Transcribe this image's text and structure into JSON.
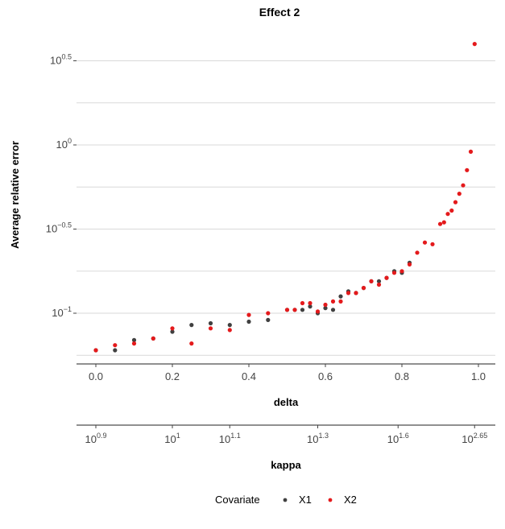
{
  "chart_data": {
    "type": "scatter",
    "title": "Effect 2",
    "ylabel": "Average relative error",
    "y_scale": "log10",
    "xlabel": "delta",
    "xlim": [
      0,
      1
    ],
    "ylim": [
      -1.39,
      0.62
    ],
    "x_ticks": [
      "0.0",
      "0.2",
      "0.4",
      "0.6",
      "0.8",
      "1.0"
    ],
    "y_ticks": [
      {
        "base": "10",
        "exp": "0.5"
      },
      {
        "base": "10",
        "exp": "0"
      },
      {
        "base": "10",
        "exp": "−0.5"
      },
      {
        "base": "10",
        "exp": "−1"
      }
    ],
    "secondary_axis": {
      "label": "kappa",
      "ticks": [
        {
          "base": "10",
          "exp": "0.9"
        },
        {
          "base": "10",
          "exp": "1"
        },
        {
          "base": "10",
          "exp": "1.1"
        },
        {
          "base": "10",
          "exp": "1.3"
        },
        {
          "base": "10",
          "exp": "1.6"
        },
        {
          "base": "10",
          "exp": "2.65"
        }
      ]
    },
    "legend": {
      "title": "Covariate",
      "position": "bottom"
    },
    "series": [
      {
        "name": "X1",
        "color": "#404040",
        "x": [
          0.0,
          0.05,
          0.1,
          0.15,
          0.2,
          0.25,
          0.3,
          0.35,
          0.4,
          0.45,
          0.5,
          0.52,
          0.54,
          0.56,
          0.58,
          0.6,
          0.62,
          0.64,
          0.66,
          0.68,
          0.7,
          0.72,
          0.74,
          0.76,
          0.78,
          0.8,
          0.82
        ],
        "y": [
          -1.22,
          -1.22,
          -1.16,
          -1.15,
          -1.11,
          -1.07,
          -1.06,
          -1.07,
          -1.05,
          -1.04,
          -0.98,
          -0.98,
          -0.98,
          -0.96,
          -1.0,
          -0.97,
          -0.98,
          -0.9,
          -0.87,
          -0.88,
          -0.85,
          -0.81,
          -0.81,
          -0.79,
          -0.75,
          -0.76,
          -0.7
        ]
      },
      {
        "name": "X2",
        "color": "#e41a1c",
        "x": [
          0.0,
          0.05,
          0.1,
          0.15,
          0.2,
          0.25,
          0.3,
          0.35,
          0.4,
          0.45,
          0.5,
          0.52,
          0.54,
          0.56,
          0.58,
          0.6,
          0.62,
          0.64,
          0.66,
          0.68,
          0.7,
          0.72,
          0.74,
          0.76,
          0.78,
          0.8,
          0.82,
          0.84,
          0.86,
          0.88,
          0.9,
          0.91,
          0.92,
          0.93,
          0.94,
          0.95,
          0.96,
          0.97,
          0.98,
          0.99
        ],
        "y": [
          -1.22,
          -1.19,
          -1.18,
          -1.15,
          -1.09,
          -1.18,
          -1.09,
          -1.1,
          -1.01,
          -1.0,
          -0.98,
          -0.98,
          -0.94,
          -0.94,
          -0.99,
          -0.95,
          -0.93,
          -0.93,
          -0.88,
          -0.88,
          -0.85,
          -0.81,
          -0.83,
          -0.79,
          -0.76,
          -0.75,
          -0.71,
          -0.64,
          -0.58,
          -0.59,
          -0.47,
          -0.46,
          -0.41,
          -0.39,
          -0.34,
          -0.29,
          -0.24,
          -0.15,
          -0.04,
          0.6
        ]
      }
    ]
  }
}
